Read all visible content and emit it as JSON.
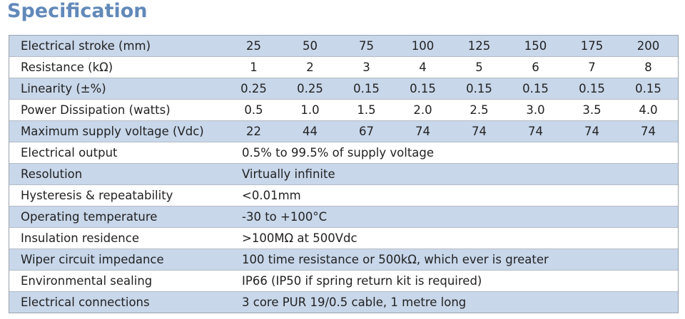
{
  "header": {
    "title": "Specification"
  },
  "table": {
    "rows": [
      {
        "label": "Electrical stroke (mm)",
        "values": [
          "25",
          "50",
          "75",
          "100",
          "125",
          "150",
          "175",
          "200"
        ]
      },
      {
        "label": "Resistance (kΩ)",
        "values": [
          "1",
          "2",
          "3",
          "4",
          "5",
          "6",
          "7",
          "8"
        ]
      },
      {
        "label": "Linearity (±%)",
        "values": [
          "0.25",
          "0.25",
          "0.15",
          "0.15",
          "0.15",
          "0.15",
          "0.15",
          "0.15"
        ]
      },
      {
        "label": "Power Dissipation (watts)",
        "values": [
          "0.5",
          "1.0",
          "1.5",
          "2.0",
          "2.5",
          "3.0",
          "3.5",
          "4.0"
        ]
      },
      {
        "label": "Maximum supply voltage (Vdc)",
        "values": [
          "22",
          "44",
          "67",
          "74",
          "74",
          "74",
          "74",
          "74"
        ]
      },
      {
        "label": "Electrical output",
        "value": "0.5% to 99.5% of supply voltage"
      },
      {
        "label": "Resolution",
        "value": "Virtually infinite"
      },
      {
        "label": "Hysteresis & repeatability",
        "value": "<0.01mm"
      },
      {
        "label": "Operating temperature",
        "value": "-30 to +100°C"
      },
      {
        "label": "Insulation residence",
        "value": ">100MΩ at 500Vdc"
      },
      {
        "label": "Wiper circuit impedance",
        "value": "100 time resistance or 500kΩ, which ever is greater"
      },
      {
        "label": "Environmental sealing",
        "value": "IP66 (IP50 if spring return kit is required)"
      },
      {
        "label": "Electrical connections",
        "value": "3 core PUR 19/0.5 cable, 1 metre long"
      }
    ]
  }
}
